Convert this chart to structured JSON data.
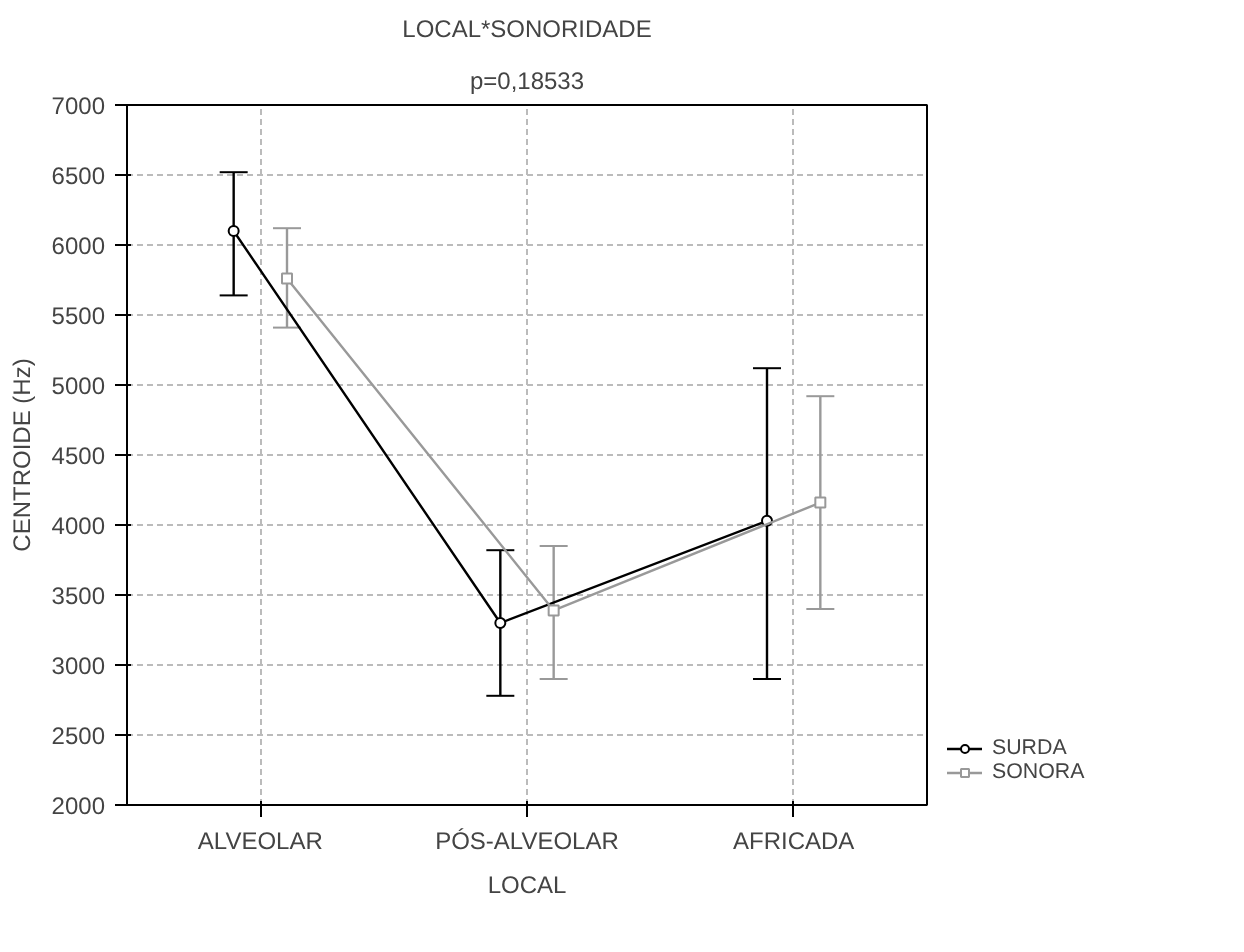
{
  "chart_data": {
    "type": "line",
    "title": "LOCAL*SONORIDADE",
    "subtitle": "p=0,18533",
    "xlabel": "LOCAL",
    "ylabel": "CENTROIDE (Hz)",
    "categories": [
      "ALVEOLAR",
      "PÓS-ALVEOLAR",
      "AFRICADA"
    ],
    "series": [
      {
        "name": "SURDA",
        "color": "#000000",
        "marker": "circle",
        "values": [
          6100,
          3300,
          4030
        ],
        "errors": [
          [
            5640,
            6520
          ],
          [
            2780,
            3820
          ],
          [
            2900,
            5120
          ]
        ]
      },
      {
        "name": "SONORA",
        "color": "#999999",
        "marker": "square",
        "values": [
          5760,
          3390,
          4160
        ],
        "errors": [
          [
            5410,
            6120
          ],
          [
            2900,
            3850
          ],
          [
            3400,
            4920
          ]
        ]
      }
    ],
    "ylim": [
      2000,
      7000
    ],
    "yticks": [
      2000,
      2500,
      3000,
      3500,
      4000,
      4500,
      5000,
      5500,
      6000,
      6500,
      7000
    ],
    "grid": true,
    "legend": "bottom right",
    "line_style": "solid"
  }
}
